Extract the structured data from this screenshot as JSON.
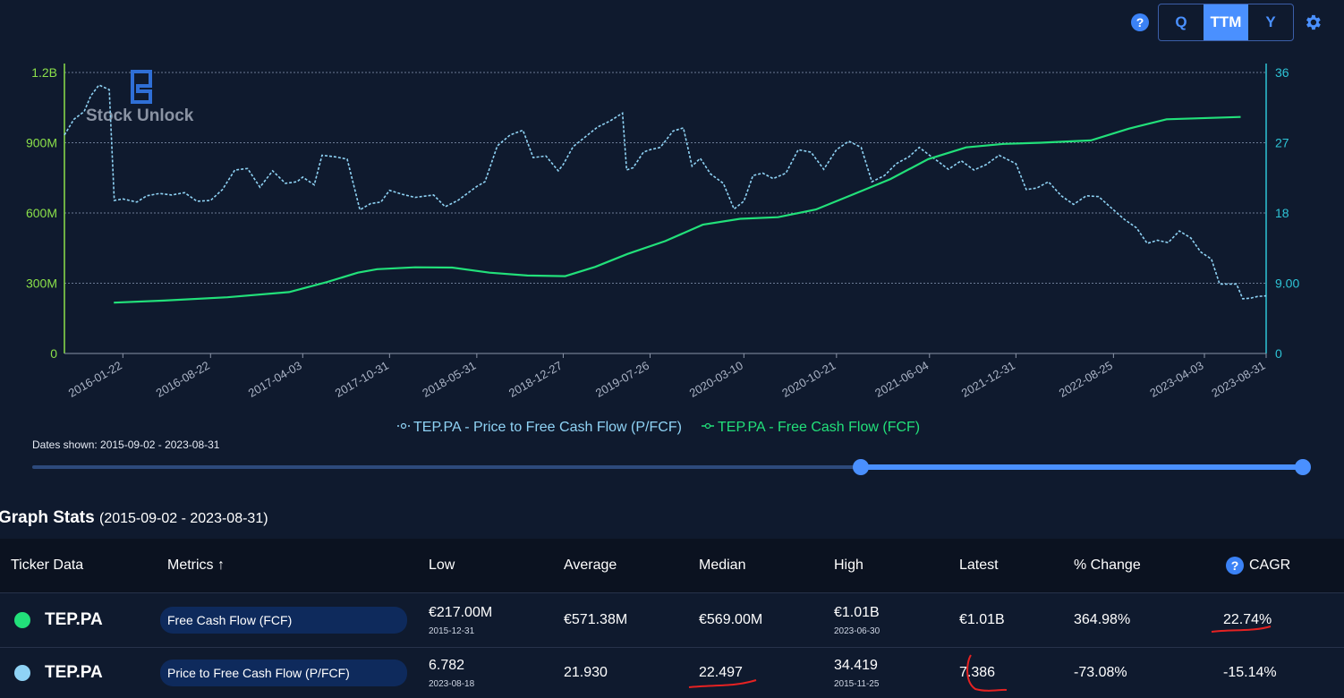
{
  "controls": {
    "help_icon": "?",
    "periods": [
      {
        "label": "Q",
        "active": false
      },
      {
        "label": "TTM",
        "active": true
      },
      {
        "label": "Y",
        "active": false
      }
    ],
    "settings_icon": "gear-icon"
  },
  "watermark": {
    "text": "Stock Unlock"
  },
  "chart_data": {
    "type": "line",
    "x_tick_labels": [
      "2016-01-22",
      "2016-08-22",
      "2017-04-03",
      "2017-10-31",
      "2018-05-31",
      "2018-12-27",
      "2019-07-26",
      "2020-03-10",
      "2020-10-21",
      "2021-06-04",
      "2021-12-31",
      "2022-08-25",
      "2023-04-03",
      "2023-08-31"
    ],
    "y_left": {
      "ticks": [
        "0",
        "300M",
        "600M",
        "900M",
        "1.2B"
      ],
      "min": 0,
      "max": 1200000000
    },
    "y_right": {
      "ticks": [
        "0",
        "9.00",
        "18",
        "27",
        "36"
      ],
      "min": 0,
      "max": 36
    },
    "grid": true,
    "legend_position": "bottom",
    "series": [
      {
        "name": "TEP.PA - Price to Free Cash Flow (P/FCF)",
        "axis": "right",
        "style": "dotted",
        "color": "#8fd3f5",
        "points": [
          [
            "2015-09-02",
            28.0
          ],
          [
            "2015-09-25",
            30.0
          ],
          [
            "2015-10-20",
            31.0
          ],
          [
            "2015-11-05",
            33.0
          ],
          [
            "2015-11-25",
            34.4
          ],
          [
            "2015-12-20",
            33.8
          ],
          [
            "2016-01-01",
            19.6
          ],
          [
            "2016-01-22",
            19.8
          ],
          [
            "2016-02-25",
            19.4
          ],
          [
            "2016-03-20",
            20.2
          ],
          [
            "2016-04-20",
            20.5
          ],
          [
            "2016-05-20",
            20.3
          ],
          [
            "2016-06-20",
            20.6
          ],
          [
            "2016-07-20",
            19.5
          ],
          [
            "2016-08-22",
            19.6
          ],
          [
            "2016-09-20",
            21.0
          ],
          [
            "2016-10-20",
            23.5
          ],
          [
            "2016-11-20",
            23.7
          ],
          [
            "2016-12-20",
            21.3
          ],
          [
            "2017-01-20",
            23.4
          ],
          [
            "2017-02-20",
            21.8
          ],
          [
            "2017-03-20",
            22.0
          ],
          [
            "2017-04-03",
            22.6
          ],
          [
            "2017-05-01",
            21.6
          ],
          [
            "2017-05-20",
            25.4
          ],
          [
            "2017-06-20",
            25.2
          ],
          [
            "2017-07-20",
            24.9
          ],
          [
            "2017-08-20",
            18.4
          ],
          [
            "2017-09-15",
            19.2
          ],
          [
            "2017-10-10",
            19.4
          ],
          [
            "2017-10-31",
            20.9
          ],
          [
            "2017-12-01",
            20.4
          ],
          [
            "2018-01-01",
            20.0
          ],
          [
            "2018-02-15",
            20.3
          ],
          [
            "2018-03-15",
            18.8
          ],
          [
            "2018-04-15",
            19.6
          ],
          [
            "2018-05-31",
            21.4
          ],
          [
            "2018-06-20",
            22.0
          ],
          [
            "2018-07-20",
            26.6
          ],
          [
            "2018-08-20",
            28.0
          ],
          [
            "2018-09-20",
            28.6
          ],
          [
            "2018-10-15",
            25.1
          ],
          [
            "2018-11-15",
            25.3
          ],
          [
            "2018-12-15",
            23.4
          ],
          [
            "2018-12-27",
            24.2
          ],
          [
            "2019-01-20",
            26.5
          ],
          [
            "2019-02-20",
            27.8
          ],
          [
            "2019-03-20",
            29.0
          ],
          [
            "2019-04-20",
            29.8
          ],
          [
            "2019-05-20",
            30.8
          ],
          [
            "2019-05-30",
            23.5
          ],
          [
            "2019-06-15",
            23.8
          ],
          [
            "2019-07-10",
            25.8
          ],
          [
            "2019-07-26",
            26.1
          ],
          [
            "2019-08-20",
            26.4
          ],
          [
            "2019-09-20",
            28.5
          ],
          [
            "2019-10-15",
            28.9
          ],
          [
            "2019-11-05",
            24.0
          ],
          [
            "2019-11-25",
            25.0
          ],
          [
            "2019-12-20",
            23.0
          ],
          [
            "2020-01-20",
            21.8
          ],
          [
            "2020-02-15",
            18.5
          ],
          [
            "2020-03-10",
            19.5
          ],
          [
            "2020-04-01",
            22.8
          ],
          [
            "2020-04-25",
            23.1
          ],
          [
            "2020-05-20",
            22.4
          ],
          [
            "2020-06-20",
            23.1
          ],
          [
            "2020-07-20",
            26.1
          ],
          [
            "2020-08-20",
            25.8
          ],
          [
            "2020-09-20",
            23.6
          ],
          [
            "2020-10-21",
            26.1
          ],
          [
            "2020-11-20",
            27.2
          ],
          [
            "2020-12-20",
            26.4
          ],
          [
            "2021-01-15",
            22.0
          ],
          [
            "2021-02-15",
            22.8
          ],
          [
            "2021-03-15",
            24.3
          ],
          [
            "2021-04-15",
            25.2
          ],
          [
            "2021-05-10",
            26.4
          ],
          [
            "2021-06-04",
            25.4
          ],
          [
            "2021-06-25",
            24.6
          ],
          [
            "2021-07-20",
            23.6
          ],
          [
            "2021-08-20",
            24.7
          ],
          [
            "2021-09-20",
            23.5
          ],
          [
            "2021-10-20",
            24.2
          ],
          [
            "2021-11-20",
            25.4
          ],
          [
            "2021-12-31",
            24.3
          ],
          [
            "2022-01-25",
            21.0
          ],
          [
            "2022-02-20",
            21.2
          ],
          [
            "2022-03-20",
            22.0
          ],
          [
            "2022-04-20",
            20.2
          ],
          [
            "2022-05-20",
            19.1
          ],
          [
            "2022-06-20",
            20.2
          ],
          [
            "2022-07-20",
            20.1
          ],
          [
            "2022-08-25",
            18.4
          ],
          [
            "2022-09-20",
            17.2
          ],
          [
            "2022-10-20",
            16.1
          ],
          [
            "2022-11-15",
            14.1
          ],
          [
            "2022-12-10",
            14.5
          ],
          [
            "2023-01-05",
            14.2
          ],
          [
            "2023-02-01",
            15.7
          ],
          [
            "2023-03-01",
            14.8
          ],
          [
            "2023-03-25",
            13.0
          ],
          [
            "2023-04-20",
            12.1
          ],
          [
            "2023-05-10",
            8.9
          ],
          [
            "2023-05-30",
            8.9
          ],
          [
            "2023-06-20",
            8.9
          ],
          [
            "2023-07-05",
            7.0
          ],
          [
            "2023-07-25",
            7.1
          ],
          [
            "2023-08-10",
            7.3
          ],
          [
            "2023-08-31",
            7.386
          ]
        ]
      },
      {
        "name": "TEP.PA - Free Cash Flow (FCF)",
        "axis": "left",
        "style": "solid",
        "color": "#22e07a",
        "points": [
          [
            "2015-12-31",
            217000000
          ],
          [
            "2016-05-01",
            226000000
          ],
          [
            "2016-10-01",
            240000000
          ],
          [
            "2017-03-01",
            262000000
          ],
          [
            "2017-06-01",
            305000000
          ],
          [
            "2017-08-15",
            345000000
          ],
          [
            "2017-10-01",
            360000000
          ],
          [
            "2018-01-01",
            368000000
          ],
          [
            "2018-04-01",
            367000000
          ],
          [
            "2018-07-01",
            345000000
          ],
          [
            "2018-10-01",
            333000000
          ],
          [
            "2019-01-01",
            330000000
          ],
          [
            "2019-03-15",
            370000000
          ],
          [
            "2019-06-01",
            425000000
          ],
          [
            "2019-09-01",
            480000000
          ],
          [
            "2019-12-01",
            550000000
          ],
          [
            "2020-03-01",
            575000000
          ],
          [
            "2020-06-01",
            582000000
          ],
          [
            "2020-09-01",
            615000000
          ],
          [
            "2020-12-01",
            680000000
          ],
          [
            "2021-03-01",
            745000000
          ],
          [
            "2021-06-01",
            830000000
          ],
          [
            "2021-09-01",
            880000000
          ],
          [
            "2021-12-01",
            895000000
          ],
          [
            "2022-03-01",
            900000000
          ],
          [
            "2022-07-01",
            910000000
          ],
          [
            "2022-10-01",
            960000000
          ],
          [
            "2023-01-01",
            1000000000
          ],
          [
            "2023-06-30",
            1010000000
          ]
        ]
      }
    ]
  },
  "dates_shown": {
    "label": "Dates shown: 2015-09-02 - 2023-08-31"
  },
  "slider": {
    "start_fraction": 0.65,
    "end_fraction": 1.0
  },
  "stats": {
    "title": "Graph Stats",
    "range": "(2015-09-02 - 2023-08-31)",
    "headers": [
      "Ticker Data",
      "Metrics",
      "Low",
      "Average",
      "Median",
      "High",
      "Latest",
      "% Change",
      "CAGR"
    ],
    "metrics_sort_icon": "↑",
    "rows": [
      {
        "dot_color": "#22e07a",
        "ticker": "TEP.PA",
        "metric": "Free Cash Flow (FCF)",
        "low": "€217.00M",
        "low_date": "2015-12-31",
        "average": "€571.38M",
        "median": "€569.00M",
        "high": "€1.01B",
        "high_date": "2023-06-30",
        "latest": "€1.01B",
        "change": "364.98%",
        "cagr": "22.74%"
      },
      {
        "dot_color": "#8fd3f5",
        "ticker": "TEP.PA",
        "metric": "Price to Free Cash Flow (P/FCF)",
        "low": "6.782",
        "low_date": "2023-08-18",
        "average": "21.930",
        "median": "22.497",
        "high": "34.419",
        "high_date": "2015-11-25",
        "latest": "7.386",
        "change": "-73.08%",
        "cagr": "-15.14%"
      }
    ]
  }
}
